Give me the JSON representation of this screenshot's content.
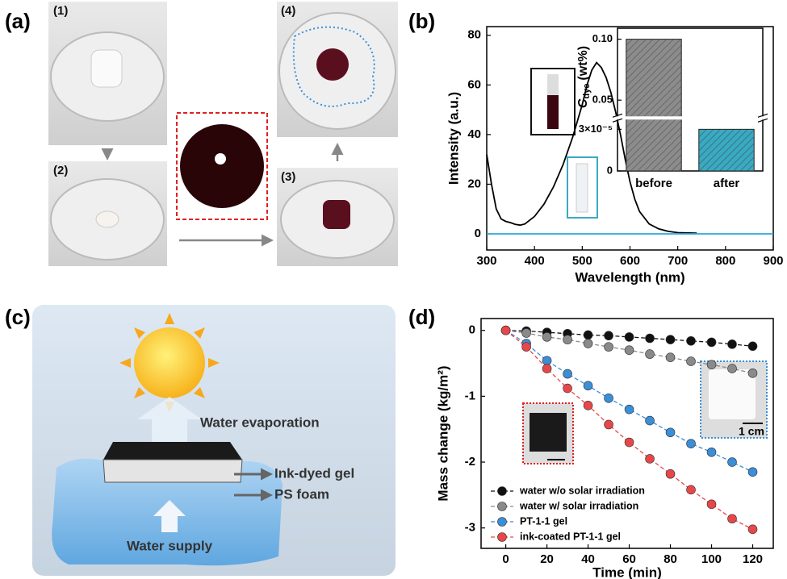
{
  "panel_labels": [
    "(a)",
    "(b)",
    "(c)",
    "(d)"
  ],
  "photo_labels": [
    "(1)",
    "(2)",
    "(3)",
    "(4)"
  ],
  "diagram_labels": {
    "evaporation": "Water evaporation",
    "dyed_gel": "Ink-dyed gel",
    "foam": "PS foam",
    "supply": "Water supply"
  },
  "chart_data": [
    {
      "type": "line",
      "xlabel": "Wavelength (nm)",
      "ylabel": "Intensity (a.u.)",
      "xlim": [
        300,
        900
      ],
      "ylim": [
        -6.5,
        83.5
      ],
      "xticks": [
        300,
        400,
        500,
        600,
        700,
        800,
        900
      ],
      "yticks": [
        0,
        20,
        40,
        60,
        80
      ],
      "series": [
        {
          "color": "#000000",
          "x": [
            300,
            310,
            320,
            330,
            340,
            350,
            360,
            370,
            380,
            400,
            420,
            440,
            460,
            480,
            500,
            510,
            520,
            530,
            540,
            550,
            560,
            570,
            580,
            590,
            600,
            610,
            620,
            640,
            660,
            680,
            700,
            740
          ],
          "values": [
            32,
            20,
            10,
            6,
            5,
            4.5,
            3.8,
            3.5,
            4,
            7,
            12,
            19,
            28,
            39,
            52,
            60,
            66,
            69,
            67,
            63,
            57,
            49,
            40,
            30,
            21,
            14,
            9,
            4,
            2,
            1,
            0.5,
            0.3
          ]
        },
        {
          "color": "#29a8d6",
          "x": [
            300,
            900
          ],
          "values": [
            0,
            0
          ]
        }
      ]
    },
    {
      "type": "bar",
      "ylabel": "C",
      "ylabel_sub": "dye",
      "ylabel_unit": "(wt%)",
      "categories": [
        "before",
        "after"
      ],
      "values": [
        0.1,
        3e-05
      ],
      "colors": [
        "#8c8c8c",
        "#3aa9c2"
      ],
      "hatch": true,
      "ylim": [
        0,
        0.109
      ],
      "ybreak": [
        3.7e-05,
        0.0367
      ],
      "yticks": [
        0,
        {
          "value": 3e-05,
          "label": "3×10⁻⁵"
        },
        0.05,
        {
          "value": 0.1,
          "label": "0.10"
        }
      ]
    },
    {
      "type": "line",
      "xlabel": "Time (min)",
      "ylabel": "Mass change (kg/m²)",
      "annotation": "1 cm",
      "xlim": [
        -12,
        130
      ],
      "ylim": [
        -3.31,
        0.18
      ],
      "xticks": [
        0,
        20,
        40,
        60,
        80,
        100,
        120
      ],
      "yticks": [
        0,
        -1,
        -2,
        -3
      ],
      "markers": true,
      "dashed": true,
      "legend": "lower left",
      "x": [
        0,
        10,
        20,
        30,
        40,
        50,
        60,
        70,
        80,
        90,
        100,
        110,
        120
      ],
      "series": [
        {
          "name": "water w/o solar irradiation",
          "color": "#111111",
          "values": [
            0,
            -0.01,
            -0.03,
            -0.05,
            -0.07,
            -0.08,
            -0.1,
            -0.12,
            -0.14,
            -0.16,
            -0.18,
            -0.21,
            -0.24
          ]
        },
        {
          "name": "water w/ solar irradiation",
          "color": "#8a8a8a",
          "values": [
            0,
            -0.04,
            -0.1,
            -0.14,
            -0.2,
            -0.25,
            -0.3,
            -0.36,
            -0.41,
            -0.47,
            -0.52,
            -0.58,
            -0.65
          ]
        },
        {
          "name": "PT-1-1 gel",
          "color": "#3b8ed8",
          "values": [
            0,
            -0.2,
            -0.46,
            -0.66,
            -0.84,
            -1.03,
            -1.2,
            -1.37,
            -1.55,
            -1.72,
            -1.85,
            -2.0,
            -2.15
          ]
        },
        {
          "name": "ink-coated PT-1-1 gel",
          "color": "#e8474a",
          "values": [
            0,
            -0.25,
            -0.58,
            -0.88,
            -1.14,
            -1.43,
            -1.7,
            -1.95,
            -2.18,
            -2.42,
            -2.64,
            -2.86,
            -3.02
          ]
        }
      ]
    }
  ]
}
